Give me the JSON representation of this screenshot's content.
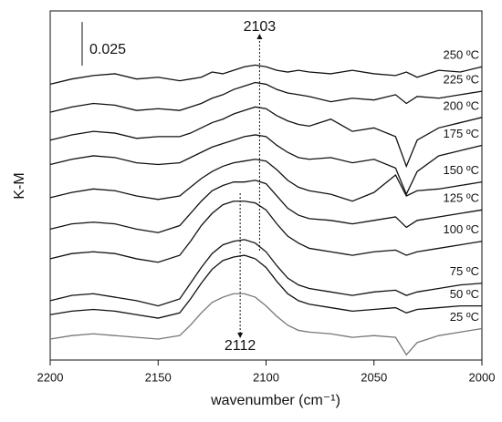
{
  "chart_data": {
    "type": "line",
    "xlabel": "wavenumber (cm⁻¹)",
    "ylabel": "K-M",
    "x": [
      2200,
      2190,
      2180,
      2170,
      2160,
      2150,
      2140,
      2135,
      2130,
      2125,
      2120,
      2115,
      2110,
      2105,
      2100,
      2095,
      2090,
      2085,
      2080,
      2070,
      2060,
      2050,
      2040,
      2035,
      2030,
      2020,
      2010,
      2000
    ],
    "xlim": [
      2200,
      2000
    ],
    "xticks": [
      2200,
      2150,
      2100,
      2050,
      2000
    ],
    "ylim": [
      0,
      0.2
    ],
    "scale_bar": {
      "value": 0.025
    },
    "annotations": [
      {
        "label": "2103",
        "x": 2103
      },
      {
        "label": "2112",
        "x": 2112
      }
    ],
    "series": [
      {
        "name": "250 ºC",
        "color": "#111111",
        "values": [
          0.158,
          0.161,
          0.163,
          0.164,
          0.161,
          0.162,
          0.16,
          0.161,
          0.162,
          0.165,
          0.164,
          0.166,
          0.168,
          0.169,
          0.168,
          0.166,
          0.165,
          0.166,
          0.165,
          0.164,
          0.166,
          0.164,
          0.163,
          0.165,
          0.162,
          0.166,
          0.165,
          0.168
        ]
      },
      {
        "name": "225 ºC",
        "color": "#111111",
        "values": [
          0.142,
          0.145,
          0.147,
          0.146,
          0.143,
          0.144,
          0.143,
          0.145,
          0.147,
          0.15,
          0.152,
          0.155,
          0.157,
          0.159,
          0.158,
          0.155,
          0.153,
          0.152,
          0.151,
          0.148,
          0.15,
          0.149,
          0.152,
          0.147,
          0.151,
          0.15,
          0.152,
          0.154
        ]
      },
      {
        "name": "200 ºC",
        "color": "#111111",
        "values": [
          0.126,
          0.129,
          0.131,
          0.13,
          0.127,
          0.128,
          0.128,
          0.13,
          0.133,
          0.136,
          0.138,
          0.141,
          0.143,
          0.145,
          0.144,
          0.14,
          0.137,
          0.135,
          0.134,
          0.138,
          0.131,
          0.133,
          0.128,
          0.111,
          0.126,
          0.133,
          0.136,
          0.139
        ]
      },
      {
        "name": "175 ºC",
        "color": "#111111",
        "values": [
          0.112,
          0.115,
          0.117,
          0.116,
          0.113,
          0.112,
          0.113,
          0.116,
          0.119,
          0.122,
          0.124,
          0.126,
          0.128,
          0.129,
          0.128,
          0.123,
          0.119,
          0.116,
          0.115,
          0.116,
          0.113,
          0.115,
          0.11,
          0.095,
          0.108,
          0.117,
          0.12,
          0.123
        ]
      },
      {
        "name": "150 ºC",
        "color": "#111111",
        "values": [
          0.093,
          0.096,
          0.098,
          0.097,
          0.094,
          0.092,
          0.094,
          0.099,
          0.104,
          0.108,
          0.111,
          0.113,
          0.114,
          0.115,
          0.114,
          0.109,
          0.103,
          0.099,
          0.097,
          0.095,
          0.091,
          0.096,
          0.106,
          0.094,
          0.097,
          0.098,
          0.1,
          0.102
        ]
      },
      {
        "name": "125 ºC",
        "color": "#111111",
        "values": [
          0.075,
          0.078,
          0.079,
          0.078,
          0.075,
          0.073,
          0.077,
          0.084,
          0.091,
          0.097,
          0.1,
          0.102,
          0.102,
          0.103,
          0.101,
          0.094,
          0.087,
          0.083,
          0.081,
          0.08,
          0.078,
          0.08,
          0.082,
          0.076,
          0.08,
          0.082,
          0.084,
          0.086
        ]
      },
      {
        "name": "100 ºC",
        "color": "#111111",
        "values": [
          0.058,
          0.061,
          0.062,
          0.061,
          0.058,
          0.056,
          0.06,
          0.068,
          0.077,
          0.084,
          0.089,
          0.091,
          0.091,
          0.09,
          0.086,
          0.078,
          0.071,
          0.067,
          0.064,
          0.062,
          0.06,
          0.062,
          0.063,
          0.06,
          0.062,
          0.064,
          0.066,
          0.068
        ]
      },
      {
        "name": "75 ºC",
        "color": "#111111",
        "values": [
          0.034,
          0.037,
          0.038,
          0.036,
          0.034,
          0.031,
          0.035,
          0.044,
          0.053,
          0.061,
          0.066,
          0.068,
          0.069,
          0.067,
          0.062,
          0.054,
          0.047,
          0.043,
          0.041,
          0.039,
          0.037,
          0.039,
          0.04,
          0.037,
          0.039,
          0.041,
          0.043,
          0.044
        ]
      },
      {
        "name": "50 ºC",
        "color": "#111111",
        "values": [
          0.026,
          0.028,
          0.029,
          0.028,
          0.026,
          0.024,
          0.027,
          0.035,
          0.044,
          0.052,
          0.057,
          0.059,
          0.06,
          0.058,
          0.053,
          0.045,
          0.038,
          0.034,
          0.032,
          0.03,
          0.028,
          0.029,
          0.03,
          0.027,
          0.029,
          0.03,
          0.031,
          0.031
        ]
      },
      {
        "name": "25 ºC",
        "color": "#777777",
        "values": [
          0.012,
          0.014,
          0.015,
          0.014,
          0.013,
          0.012,
          0.014,
          0.02,
          0.027,
          0.033,
          0.036,
          0.038,
          0.038,
          0.036,
          0.031,
          0.025,
          0.02,
          0.017,
          0.016,
          0.015,
          0.013,
          0.014,
          0.013,
          0.003,
          0.01,
          0.014,
          0.016,
          0.018
        ]
      }
    ]
  }
}
